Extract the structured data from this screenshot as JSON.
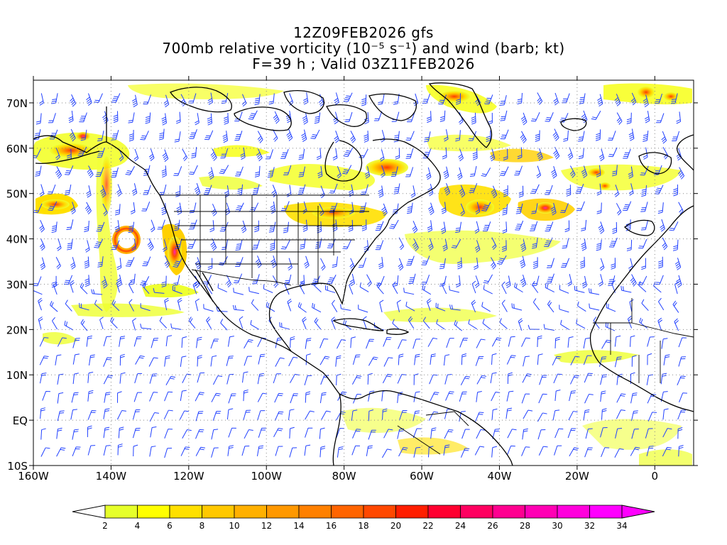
{
  "title": {
    "line1": "12Z09FEB2026 gfs",
    "line2": "700mb relative vorticity (10⁻⁵ s⁻¹) and wind (barb; kt)",
    "line3": "F=39 h ; Valid 03Z11FEB2026"
  },
  "axes": {
    "lon": {
      "min": -160,
      "max": 10,
      "ticks": [
        -160,
        -140,
        -120,
        -100,
        -80,
        -60,
        -40,
        -20,
        0
      ],
      "labels": [
        "160W",
        "140W",
        "120W",
        "100W",
        "80W",
        "60W",
        "40W",
        "20W",
        "0"
      ]
    },
    "lat": {
      "min": -10,
      "max": 75,
      "ticks": [
        -10,
        0,
        10,
        20,
        30,
        40,
        50,
        60,
        70
      ],
      "labels": [
        "10S",
        "EQ",
        "10N",
        "20N",
        "30N",
        "40N",
        "50N",
        "60N",
        "70N"
      ]
    }
  },
  "colorbar": {
    "levels": [
      "2",
      "4",
      "6",
      "8",
      "10",
      "12",
      "14",
      "16",
      "18",
      "20",
      "22",
      "24",
      "26",
      "28",
      "30",
      "32",
      "34"
    ],
    "colors": [
      "#e6ff2a",
      "#ffff00",
      "#ffe000",
      "#ffc800",
      "#ffb000",
      "#ff9800",
      "#ff8000",
      "#ff6400",
      "#ff4800",
      "#ff1e00",
      "#ff0030",
      "#ff0060",
      "#ff0090",
      "#ff00b4",
      "#ff00dc",
      "#ff00ff"
    ],
    "under_color": "#ffffff",
    "over_color": "#ff00ff"
  },
  "colors": {
    "barb": "#2040ff",
    "coast": "#000000",
    "grid": "#888888"
  }
}
